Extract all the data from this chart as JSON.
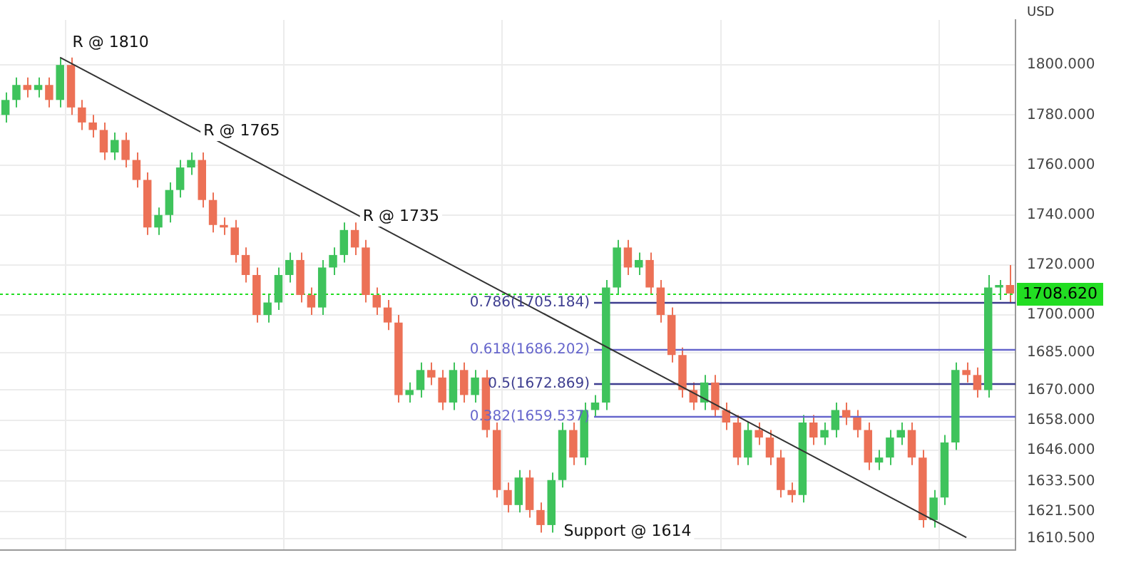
{
  "chart_data": {
    "type": "candlestick",
    "ylabel": "USD",
    "tick_labels": "y",
    "grid": true,
    "legend": false,
    "categories": [
      null,
      null,
      null,
      null,
      null,
      null,
      null,
      null,
      null,
      null,
      null,
      null,
      null,
      null,
      null,
      null,
      null,
      null,
      null,
      null,
      null,
      null,
      null,
      null,
      null,
      null,
      null,
      null,
      null,
      null,
      null,
      null,
      null,
      null,
      null,
      null,
      null,
      null,
      null,
      null,
      null,
      null,
      null,
      null,
      null,
      null,
      null,
      null,
      null,
      null,
      null,
      null,
      null,
      null,
      null,
      null,
      null,
      null,
      null,
      null,
      null,
      null,
      null,
      null,
      null,
      null,
      null,
      null,
      null,
      null,
      null,
      null,
      null,
      null,
      null,
      null,
      null,
      null,
      null,
      null,
      null,
      null,
      null,
      null,
      null,
      null,
      null,
      null,
      null,
      null,
      null,
      null,
      null
    ],
    "ohlc": [
      [
        1780,
        1789,
        1777,
        1786
      ],
      [
        1786,
        1795,
        1783,
        1792
      ],
      [
        1792,
        1795,
        1787,
        1790
      ],
      [
        1790,
        1795,
        1787,
        1792
      ],
      [
        1792,
        1795,
        1783,
        1786
      ],
      [
        1786,
        1803,
        1783,
        1800
      ],
      [
        1800,
        1803,
        1780,
        1783
      ],
      [
        1783,
        1786,
        1774,
        1777
      ],
      [
        1777,
        1780,
        1771,
        1774
      ],
      [
        1774,
        1777,
        1762,
        1765
      ],
      [
        1765,
        1773,
        1762,
        1770
      ],
      [
        1770,
        1773,
        1759,
        1762
      ],
      [
        1762,
        1765,
        1751,
        1754
      ],
      [
        1754,
        1757,
        1732,
        1735
      ],
      [
        1735,
        1743,
        1732,
        1740
      ],
      [
        1740,
        1753,
        1737,
        1750
      ],
      [
        1750,
        1762,
        1747,
        1759
      ],
      [
        1759,
        1765,
        1756,
        1762
      ],
      [
        1762,
        1765,
        1743,
        1746
      ],
      [
        1746,
        1749,
        1733,
        1736
      ],
      [
        1736,
        1739,
        1732,
        1735
      ],
      [
        1735,
        1738,
        1721,
        1724
      ],
      [
        1724,
        1727,
        1713,
        1716
      ],
      [
        1716,
        1719,
        1697,
        1700
      ],
      [
        1700,
        1708,
        1697,
        1705
      ],
      [
        1705,
        1719,
        1702,
        1716
      ],
      [
        1716,
        1725,
        1713,
        1722
      ],
      [
        1722,
        1725,
        1705,
        1708
      ],
      [
        1708,
        1711,
        1700,
        1703
      ],
      [
        1703,
        1722,
        1700,
        1719
      ],
      [
        1719,
        1727,
        1716,
        1724
      ],
      [
        1724,
        1737,
        1721,
        1734
      ],
      [
        1734,
        1737,
        1724,
        1727
      ],
      [
        1727,
        1730,
        1705,
        1708
      ],
      [
        1708,
        1711,
        1700,
        1703
      ],
      [
        1703,
        1706,
        1694,
        1697
      ],
      [
        1697,
        1700,
        1665,
        1668
      ],
      [
        1668,
        1673,
        1665,
        1670
      ],
      [
        1670,
        1681,
        1667,
        1678
      ],
      [
        1678,
        1681,
        1672,
        1675
      ],
      [
        1675,
        1678,
        1662,
        1665
      ],
      [
        1665,
        1681,
        1662,
        1678
      ],
      [
        1678,
        1681,
        1665,
        1668
      ],
      [
        1668,
        1678,
        1665,
        1675
      ],
      [
        1675,
        1678,
        1651,
        1654
      ],
      [
        1654,
        1657,
        1627,
        1630
      ],
      [
        1630,
        1633,
        1621,
        1624
      ],
      [
        1624,
        1638,
        1621,
        1635
      ],
      [
        1635,
        1638,
        1619,
        1622
      ],
      [
        1622,
        1625,
        1613,
        1616
      ],
      [
        1616,
        1637,
        1613,
        1634
      ],
      [
        1634,
        1657,
        1631,
        1654
      ],
      [
        1654,
        1657,
        1640,
        1643
      ],
      [
        1643,
        1665,
        1640,
        1662
      ],
      [
        1662,
        1668,
        1659,
        1665
      ],
      [
        1665,
        1714,
        1662,
        1711
      ],
      [
        1711,
        1730,
        1708,
        1727
      ],
      [
        1727,
        1730,
        1716,
        1719
      ],
      [
        1719,
        1725,
        1716,
        1722
      ],
      [
        1722,
        1725,
        1708,
        1711
      ],
      [
        1711,
        1714,
        1697,
        1700
      ],
      [
        1700,
        1703,
        1681,
        1684
      ],
      [
        1684,
        1687,
        1667,
        1670
      ],
      [
        1670,
        1673,
        1662,
        1665
      ],
      [
        1665,
        1676,
        1662,
        1673
      ],
      [
        1673,
        1676,
        1659,
        1662
      ],
      [
        1662,
        1665,
        1654,
        1657
      ],
      [
        1657,
        1660,
        1640,
        1643
      ],
      [
        1643,
        1657,
        1640,
        1654
      ],
      [
        1654,
        1657,
        1648,
        1651
      ],
      [
        1651,
        1654,
        1640,
        1643
      ],
      [
        1643,
        1646,
        1627,
        1630
      ],
      [
        1630,
        1633,
        1625,
        1628
      ],
      [
        1628,
        1660,
        1625,
        1657
      ],
      [
        1657,
        1660,
        1648,
        1651
      ],
      [
        1651,
        1657,
        1648,
        1654
      ],
      [
        1654,
        1665,
        1651,
        1662
      ],
      [
        1662,
        1665,
        1656,
        1659
      ],
      [
        1659,
        1662,
        1651,
        1654
      ],
      [
        1654,
        1657,
        1638,
        1641
      ],
      [
        1641,
        1646,
        1638,
        1643
      ],
      [
        1643,
        1654,
        1640,
        1651
      ],
      [
        1651,
        1657,
        1648,
        1654
      ],
      [
        1654,
        1657,
        1640,
        1643
      ],
      [
        1643,
        1646,
        1615,
        1618
      ],
      [
        1618,
        1630,
        1615,
        1627
      ],
      [
        1627,
        1652,
        1624,
        1649
      ],
      [
        1649,
        1681,
        1646,
        1678
      ],
      [
        1678,
        1681,
        1673,
        1676
      ],
      [
        1676,
        1679,
        1667,
        1670
      ],
      [
        1670,
        1716,
        1667,
        1711
      ],
      [
        1711,
        1714,
        1706,
        1712
      ],
      [
        1712,
        1720,
        1705,
        1708.6
      ]
    ],
    "series": [
      {
        "type": "line",
        "color": "#333333",
        "values": [
          null,
          null,
          null,
          null,
          null,
          1803,
          null,
          null,
          null,
          null,
          null,
          null,
          null,
          null,
          null,
          null,
          null,
          null,
          null,
          null,
          null,
          null,
          null,
          null,
          null,
          null,
          null,
          null,
          null,
          null,
          null,
          null,
          null,
          null,
          null,
          null,
          null,
          null,
          null,
          null,
          null,
          null,
          null,
          null,
          null,
          null,
          null,
          null,
          null,
          null,
          null,
          null,
          null,
          null,
          null,
          null,
          null,
          null,
          null,
          null,
          null,
          null,
          null,
          null,
          null,
          null,
          null,
          null,
          null,
          null,
          null,
          null,
          null,
          null,
          null,
          null,
          null,
          null,
          null,
          null,
          null,
          null,
          null,
          null,
          null,
          null,
          null,
          null,
          1611,
          null,
          null,
          null,
          null
        ]
      }
    ],
    "ylim": [
      1606,
      1818
    ],
    "yticks": [
      {
        "value": 1610.5,
        "label": "1610.500"
      },
      {
        "value": 1621.5,
        "label": "1621.500"
      },
      {
        "value": 1633.5,
        "label": "1633.500"
      },
      {
        "value": 1646,
        "label": "1646.000"
      },
      {
        "value": 1658,
        "label": "1658.000"
      },
      {
        "value": 1670,
        "label": "1670.000"
      },
      {
        "value": 1685,
        "label": "1685.000"
      },
      {
        "value": 1700,
        "label": "1700.000"
      },
      {
        "value": 1720,
        "label": "1720.000"
      },
      {
        "value": 1740,
        "label": "1740.000"
      },
      {
        "value": 1760,
        "label": "1760.000"
      },
      {
        "value": 1780,
        "label": "1780.000"
      },
      {
        "value": 1800,
        "label": "1800.000"
      }
    ],
    "ref_lines": [
      {
        "axis": "y",
        "value": 1705.184,
        "label": "0.786(1705.184)",
        "color": "#3d3d8f"
      },
      {
        "axis": "y",
        "value": 1686.202,
        "label": "0.618(1686.202)",
        "color": "#6666cc"
      },
      {
        "axis": "y",
        "value": 1672.869,
        "label": "0.5(1672.869)",
        "color": "#3d3d8f"
      },
      {
        "axis": "y",
        "value": 1659.537,
        "label": "0.382(1659.537)",
        "color": "#6666cc"
      },
      {
        "axis": "y",
        "value": 1708.62,
        "label": "1708.620",
        "color": "#22dd22",
        "line_style": "dotted"
      }
    ],
    "annotations": [
      "R @ 1810",
      "R @ 1765",
      "R @ 1735",
      "Support @ 1614"
    ]
  }
}
